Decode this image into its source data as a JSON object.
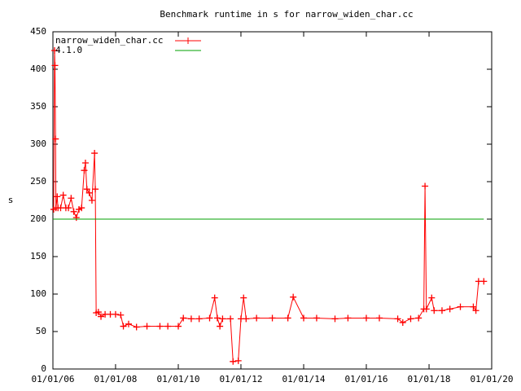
{
  "chart_data": {
    "type": "line",
    "title": "Benchmark runtime in s for narrow_widen_char.cc",
    "y_label": "s",
    "xlim": [
      "2006-01-01",
      "2020-01-01"
    ],
    "xticks": [
      {
        "value": "2006-01-01",
        "label": "01/01/06"
      },
      {
        "value": "2008-01-01",
        "label": "01/01/08"
      },
      {
        "value": "2010-01-01",
        "label": "01/01/10"
      },
      {
        "value": "2012-01-01",
        "label": "01/01/12"
      },
      {
        "value": "2014-01-01",
        "label": "01/01/14"
      },
      {
        "value": "2016-01-01",
        "label": "01/01/16"
      },
      {
        "value": "2018-01-01",
        "label": "01/01/18"
      },
      {
        "value": "2020-01-01",
        "label": "01/01/20"
      }
    ],
    "ylim": [
      0,
      450
    ],
    "yticks": [
      0,
      50,
      100,
      150,
      200,
      250,
      300,
      350,
      400,
      450
    ],
    "legend": "top-left",
    "series": [
      {
        "name": "narrow_widen_char.cc",
        "color": "#ff0000",
        "markers": true,
        "x": [
          "2006-01-10",
          "2006-01-20",
          "2006-01-25",
          "2006-02-01",
          "2006-02-05",
          "2006-02-20",
          "2006-03-01",
          "2006-04-01",
          "2006-05-01",
          "2006-06-01",
          "2006-07-01",
          "2006-08-01",
          "2006-09-01",
          "2006-10-01",
          "2006-11-01",
          "2006-12-01",
          "2007-01-01",
          "2007-01-15",
          "2007-02-01",
          "2007-03-01",
          "2007-04-01",
          "2007-05-01",
          "2007-05-10",
          "2007-05-20",
          "2007-06-15",
          "2007-07-15",
          "2007-09-01",
          "2007-11-01",
          "2008-01-01",
          "2008-03-01",
          "2008-04-01",
          "2008-06-01",
          "2008-09-01",
          "2009-01-01",
          "2009-06-01",
          "2009-09-01",
          "2010-01-01",
          "2010-03-01",
          "2010-06-01",
          "2010-09-01",
          "2011-01-01",
          "2011-03-01",
          "2011-04-01",
          "2011-05-01",
          "2011-06-01",
          "2011-09-01",
          "2011-10-01",
          "2011-12-01",
          "2012-01-01",
          "2012-02-01",
          "2012-03-01",
          "2012-07-01",
          "2013-01-01",
          "2013-07-01",
          "2013-09-01",
          "2014-01-01",
          "2014-06-01",
          "2015-01-01",
          "2015-06-01",
          "2016-01-01",
          "2016-06-01",
          "2017-01-01",
          "2017-03-01",
          "2017-06-01",
          "2017-09-01",
          "2017-11-01",
          "2017-11-15",
          "2017-12-01",
          "2018-02-01",
          "2018-03-01",
          "2018-06-01",
          "2018-09-01",
          "2019-01-01",
          "2019-06-01",
          "2019-07-01",
          "2019-08-01",
          "2019-10-01"
        ],
        "values": [
          213,
          425,
          405,
          307,
          215,
          230,
          215,
          215,
          232,
          215,
          215,
          228,
          210,
          202,
          213,
          215,
          265,
          275,
          240,
          235,
          225,
          288,
          240,
          75,
          76,
          70,
          73,
          73,
          73,
          72,
          57,
          60,
          56,
          57,
          57,
          57,
          57,
          68,
          67,
          67,
          68,
          95,
          68,
          57,
          67,
          67,
          10,
          11,
          67,
          95,
          67,
          68,
          68,
          68,
          96,
          68,
          68,
          67,
          68,
          68,
          68,
          67,
          62,
          67,
          68,
          80,
          244,
          80,
          95,
          78,
          78,
          80,
          83,
          83,
          78,
          117,
          117
        ]
      },
      {
        "name": "4.1.0",
        "color": "#00a000",
        "markers": false,
        "x": [
          "2006-01-01",
          "2019-10-01"
        ],
        "values": [
          200,
          200
        ]
      }
    ]
  }
}
